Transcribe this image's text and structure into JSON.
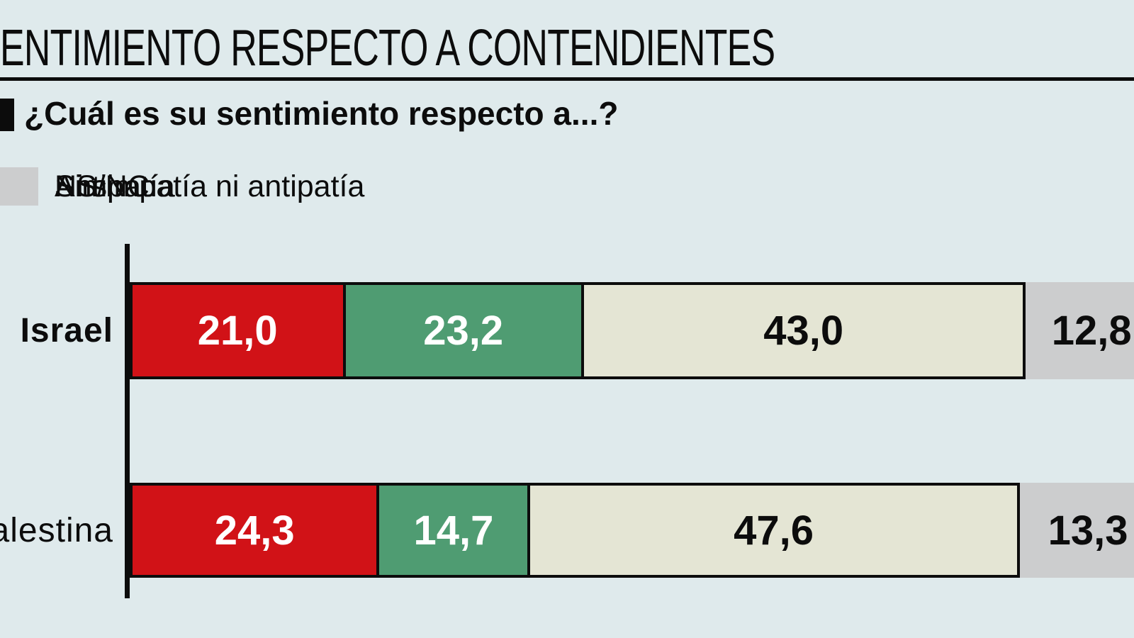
{
  "header": {
    "title": "ENTIMIENTO RESPECTO A CONTENDIENTES",
    "question": "¿Cuál es su sentimiento respecto a...?"
  },
  "legend": [
    {
      "label": "Simpatía",
      "color": "#d11217",
      "bordered": true
    },
    {
      "label": "Antipatía",
      "color": "#4f9c72",
      "bordered": true
    },
    {
      "label": "Ni simpatía ni antipatía",
      "color": "#e4e5d4",
      "bordered": true
    },
    {
      "label": "NS/NC",
      "color": "#cccdce",
      "bordered": false
    }
  ],
  "chart_data": {
    "type": "bar",
    "orientation": "horizontal-stacked",
    "categories": [
      {
        "label": "Israel",
        "bold": true
      },
      {
        "label": "Palestina",
        "bold": false
      }
    ],
    "series": [
      {
        "name": "Simpatía",
        "color": "#d11217",
        "text_color": "#ffffff",
        "values": [
          21.0,
          24.3
        ]
      },
      {
        "name": "Antipatía",
        "color": "#4f9c72",
        "text_color": "#ffffff",
        "values": [
          23.2,
          14.7
        ]
      },
      {
        "name": "Ni simpatía ni antipatía",
        "color": "#e4e5d4",
        "text_color": "#0c0c0c",
        "values": [
          43.0,
          47.6
        ]
      },
      {
        "name": "NS/NC",
        "color": "#cccdce",
        "text_color": "#0c0c0c",
        "values": [
          12.8,
          13.3
        ]
      }
    ],
    "value_labels": [
      [
        "21,0",
        "23,2",
        "43,0",
        "12,8"
      ],
      [
        "24,3",
        "14,7",
        "47,6",
        "13,3"
      ]
    ],
    "xlim": [
      0,
      100
    ],
    "legend_position": "top",
    "grid": false
  },
  "colors": {
    "background": "#dfeaec",
    "ink": "#0c0c0c"
  }
}
